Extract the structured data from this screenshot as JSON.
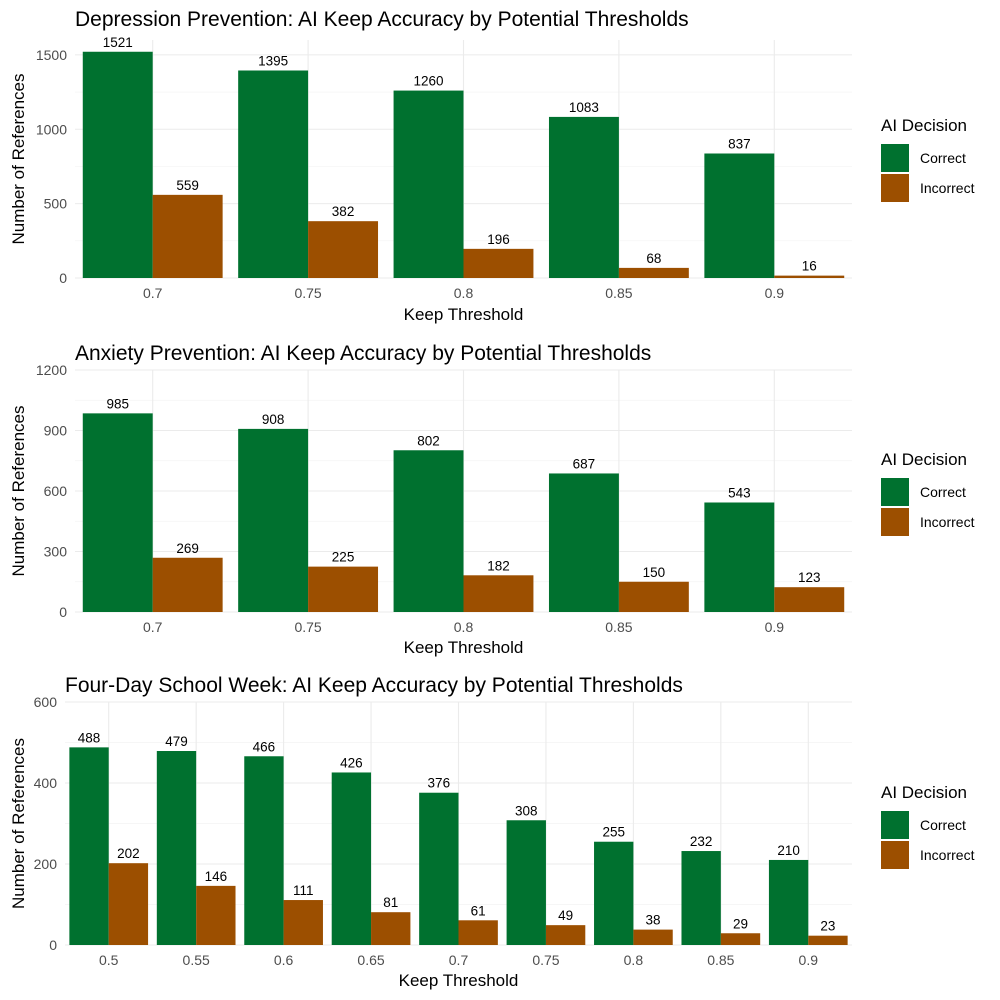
{
  "colors": {
    "correct": "#00712f",
    "incorrect": "#9c4f00"
  },
  "legend": {
    "title": "AI Decision",
    "items": [
      "Correct",
      "Incorrect"
    ]
  },
  "chart_data": [
    {
      "type": "bar",
      "title": "Depression Prevention: AI Keep Accuracy by Potential Thresholds",
      "xlabel": "Keep Threshold",
      "ylabel": "Number of References",
      "categories": [
        "0.7",
        "0.75",
        "0.8",
        "0.85",
        "0.9"
      ],
      "series": [
        {
          "name": "Correct",
          "values": [
            1521,
            1395,
            1260,
            1083,
            837
          ]
        },
        {
          "name": "Incorrect",
          "values": [
            559,
            382,
            196,
            68,
            16
          ]
        }
      ],
      "ylim": [
        0,
        1600
      ],
      "yticks": [
        0,
        500,
        1000,
        1500
      ],
      "grid": true,
      "legend_position": "right"
    },
    {
      "type": "bar",
      "title": "Anxiety Prevention: AI Keep Accuracy by Potential Thresholds",
      "xlabel": "Keep Threshold",
      "ylabel": "Number of References",
      "categories": [
        "0.7",
        "0.75",
        "0.8",
        "0.85",
        "0.9"
      ],
      "series": [
        {
          "name": "Correct",
          "values": [
            985,
            908,
            802,
            687,
            543
          ]
        },
        {
          "name": "Incorrect",
          "values": [
            269,
            225,
            182,
            150,
            123
          ]
        }
      ],
      "ylim": [
        0,
        1200
      ],
      "yticks": [
        0,
        300,
        600,
        900,
        1200
      ],
      "grid": true,
      "legend_position": "right"
    },
    {
      "type": "bar",
      "title": "Four-Day School Week: AI Keep Accuracy by Potential Thresholds",
      "xlabel": "Keep Threshold",
      "ylabel": "Number of References",
      "categories": [
        "0.5",
        "0.55",
        "0.6",
        "0.65",
        "0.7",
        "0.75",
        "0.8",
        "0.85",
        "0.9"
      ],
      "series": [
        {
          "name": "Correct",
          "values": [
            488,
            479,
            466,
            426,
            376,
            308,
            255,
            232,
            210
          ]
        },
        {
          "name": "Incorrect",
          "values": [
            202,
            146,
            111,
            81,
            61,
            49,
            38,
            29,
            23
          ]
        }
      ],
      "ylim": [
        0,
        600
      ],
      "yticks": [
        0,
        200,
        400,
        600
      ],
      "grid": true,
      "legend_position": "right"
    }
  ]
}
